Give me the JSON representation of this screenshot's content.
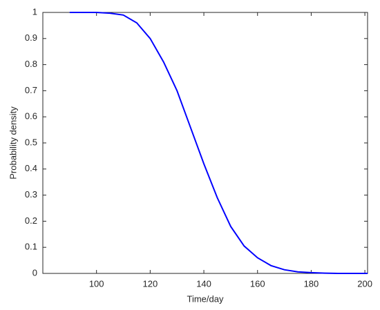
{
  "chart_data": {
    "type": "line",
    "x_label": "Time/day",
    "y_label": "Probability density",
    "x": [
      90,
      95,
      100,
      105,
      110,
      115,
      120,
      125,
      130,
      135,
      140,
      145,
      150,
      155,
      160,
      165,
      170,
      175,
      180,
      185,
      190,
      195,
      200,
      201
    ],
    "series": [
      {
        "name": "Probability density",
        "color": "#0000ff",
        "values": [
          1,
          1,
          1,
          0.997,
          0.99,
          0.96,
          0.9,
          0.81,
          0.7,
          0.56,
          0.42,
          0.29,
          0.18,
          0.105,
          0.06,
          0.03,
          0.014,
          0.006,
          0.003,
          0.001,
          0,
          0,
          0,
          0
        ]
      }
    ],
    "xlim": [
      80,
      201
    ],
    "xticks": [
      100,
      120,
      140,
      160,
      180,
      200
    ],
    "ylim": [
      0,
      1
    ],
    "yticks": [
      0,
      0.1,
      0.2,
      0.3,
      0.4,
      0.5,
      0.6,
      0.7,
      0.8,
      0.9,
      1
    ],
    "grid": false
  }
}
